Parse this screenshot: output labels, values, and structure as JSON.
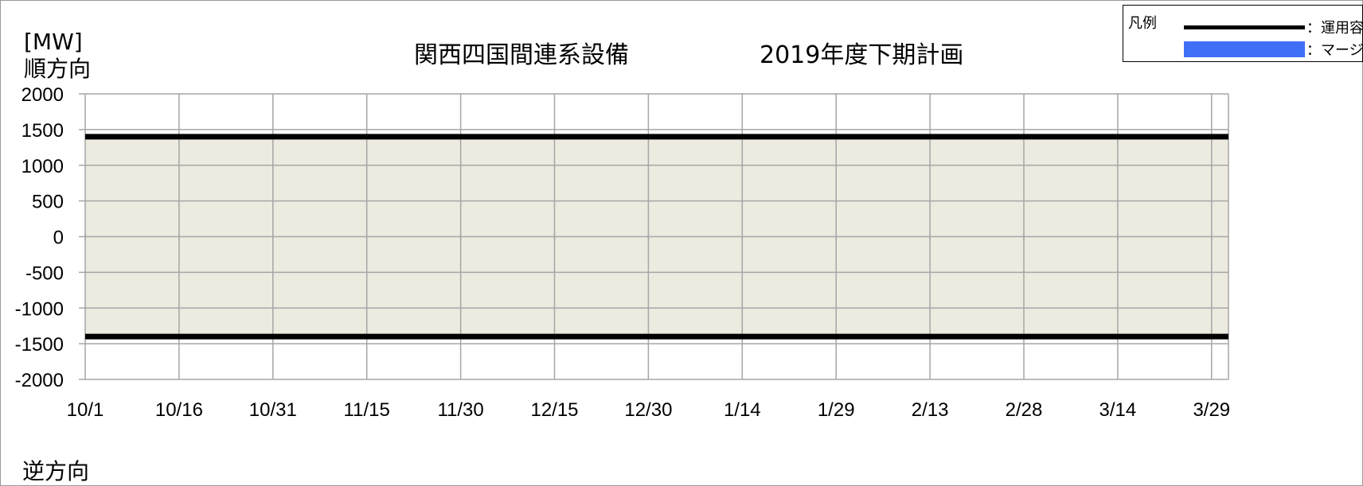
{
  "chart_data": {
    "type": "area",
    "title_left": "関西四国間連系設備",
    "title_right": "2019年度下期計画",
    "unit_label": "[MW]",
    "forward_label": "順方向",
    "reverse_label": "逆方向",
    "ylim": [
      -2000,
      2000
    ],
    "y_ticks": [
      "2000",
      "1500",
      "1000",
      "500",
      "0",
      "-500",
      "-1000",
      "-1500",
      "-2000"
    ],
    "y_tick_values": [
      2000,
      1500,
      1000,
      500,
      0,
      -500,
      -1000,
      -1500,
      -2000
    ],
    "x_ticks": [
      "10/1",
      "10/16",
      "10/31",
      "11/15",
      "11/30",
      "12/15",
      "12/30",
      "1/14",
      "1/29",
      "2/13",
      "2/28",
      "3/14",
      "3/29"
    ],
    "x_range": [
      "10/1",
      "3/31"
    ],
    "grid": true,
    "series": [
      {
        "name": "運用容量（順方向）",
        "x": [
          "10/1",
          "3/31"
        ],
        "values": [
          1400,
          1400
        ]
      },
      {
        "name": "運用容量（逆方向）",
        "x": [
          "10/1",
          "3/31"
        ],
        "values": [
          -1400,
          -1400
        ]
      },
      {
        "name": "マージン",
        "x": [
          "10/1",
          "3/31"
        ],
        "values": [
          0,
          0
        ]
      }
    ],
    "legend": {
      "header": "凡例",
      "items": [
        {
          "label": "：運用容量",
          "kind": "line",
          "color": "#000000"
        },
        {
          "label": "：マージン",
          "kind": "box",
          "color": "#3f6ff5"
        }
      ],
      "placement": "top-right"
    },
    "colors": {
      "band_fill": "#edeae0",
      "capacity_line": "#000000",
      "margin": "#3f6ff5",
      "grid": "#a6a6a6"
    }
  }
}
